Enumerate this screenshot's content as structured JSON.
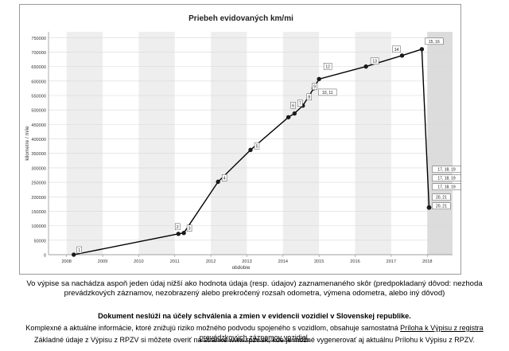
{
  "chart_data": {
    "type": "line",
    "title": "Priebeh evidovaných km/mi",
    "xlabel": "obdobie",
    "ylabel": "kilometre / míle",
    "xlim": [
      2007.5,
      2018.7
    ],
    "ylim": [
      0,
      770000
    ],
    "x_ticks": [
      "2008",
      "2009",
      "2010",
      "2011",
      "2012",
      "2013",
      "2014",
      "2015",
      "2016",
      "2017",
      "2018"
    ],
    "y_ticks": [
      "0",
      "50000",
      "100000",
      "150000",
      "200000",
      "250000",
      "300000",
      "350000",
      "400000",
      "450000",
      "500000",
      "550000",
      "600000",
      "650000",
      "700000",
      "750000"
    ],
    "grid": true,
    "points": [
      {
        "x": 2008.2,
        "y": 0,
        "label": "1"
      },
      {
        "x": 2011.1,
        "y": 72000,
        "label": "2"
      },
      {
        "x": 2011.25,
        "y": 75000,
        "label": "3"
      },
      {
        "x": 2012.2,
        "y": 252000,
        "label": "4"
      },
      {
        "x": 2013.1,
        "y": 362000,
        "label": "5"
      },
      {
        "x": 2014.15,
        "y": 475000,
        "label": "6"
      },
      {
        "x": 2014.32,
        "y": 488000,
        "label": "7"
      },
      {
        "x": 2014.55,
        "y": 515000,
        "label": "8"
      },
      {
        "x": 2014.72,
        "y": 548000,
        "label": "9"
      },
      {
        "x": 2014.85,
        "y": 575000,
        "label": "10, 11"
      },
      {
        "x": 2015.0,
        "y": 607000,
        "label": "12"
      },
      {
        "x": 2016.3,
        "y": 650000,
        "label": "13"
      },
      {
        "x": 2017.3,
        "y": 688000,
        "label": "14"
      },
      {
        "x": 2017.85,
        "y": 710000,
        "label": "15, 16"
      },
      {
        "x": 2018.05,
        "y": 163000,
        "label": "17, 18, 19"
      },
      {
        "x": 2018.05,
        "y": 163000,
        "label": "17, 18, 19"
      },
      {
        "x": 2018.05,
        "y": 163000,
        "label": "17, 18, 19"
      },
      {
        "x": 2018.05,
        "y": 163000,
        "label": "20, 21"
      },
      {
        "x": 2018.05,
        "y": 163000,
        "label": "20, 21"
      }
    ],
    "colors": {
      "line": "#000000",
      "marker": "#1a1a1a",
      "band": "#eeeeee",
      "highlight_band": "#dcdcdc"
    }
  },
  "notes": {
    "warning_line1": "Vo výpise sa nachádza  aspoň jeden údaj nižší ako hodnota údaja (resp. údajov) zaznamenaného skôr (predpokladaný dôvod: nezhoda",
    "warning_line2": "prevádzkových záznamov, nezobrazený alebo prekročený rozsah odometra, výmena odometra, alebo iný dôvod)",
    "bold_notice": "Dokument neslúži na účely schválenia a zmien v evidencii vozidiel v Slovenskej republike.",
    "info_text": "Komplexné a aktuálne informácie, ktoré znižujú riziko možného podvodu spojeného s vozidlom, obsahuje samostatná ",
    "info_link": "Príloha k Výpisu z registra prevádzkových záznamov vozidiel.",
    "rpzv_text": "Základné údaje z Výpisu z RPZV si môžete overiť na stránke www.rpzv.sk, kde je možné vygenerovať aj aktuálnu Prílohu k Výpisu z RPZV."
  }
}
